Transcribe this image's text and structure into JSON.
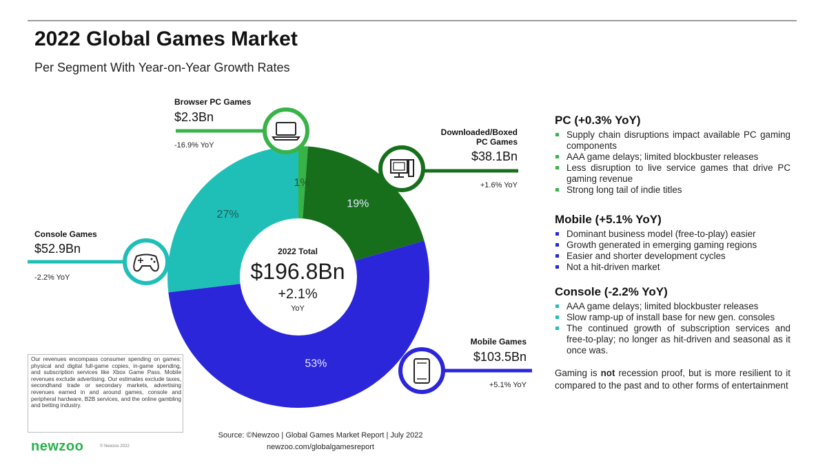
{
  "title": "2022 Global Games Market",
  "subtitle": "Per Segment With Year-on-Year Growth Rates",
  "chart_data": {
    "type": "pie",
    "style": "donut",
    "center": {
      "label": "2022 Total",
      "value": "$196.8Bn",
      "growth": "+2.1%",
      "growth_label": "YoY"
    },
    "slices": [
      {
        "name": "Browser PC Games",
        "value_bn": 2.3,
        "value_label": "$2.3Bn",
        "share_label": "1%",
        "yoy": "-16.9% YoY",
        "color": "#38b348"
      },
      {
        "name": "Downloaded/Boxed PC Games",
        "value_bn": 38.1,
        "value_label": "$38.1Bn",
        "share_label": "19%",
        "yoy": "+1.6% YoY",
        "color": "#176f1c"
      },
      {
        "name": "Mobile Games",
        "value_bn": 103.5,
        "value_label": "$103.5Bn",
        "share_label": "53%",
        "yoy": "+5.1% YoY",
        "color": "#2b26d9"
      },
      {
        "name": "Console Games",
        "value_bn": 52.9,
        "value_label": "$52.9Bn",
        "share_label": "27%",
        "yoy": "-2.2% YoY",
        "color": "#1fbfb8"
      }
    ]
  },
  "segments": {
    "browser": {
      "label": "Browser PC Games",
      "value": "$2.3Bn",
      "yoy": "-16.9% YoY",
      "icon": "laptop-icon"
    },
    "boxed": {
      "label1": "Downloaded/Boxed",
      "label2": "PC Games",
      "value": "$38.1Bn",
      "yoy": "+1.6% YoY",
      "icon": "desktop-pc-icon"
    },
    "mobile": {
      "label": "Mobile Games",
      "value": "$103.5Bn",
      "yoy": "+5.1% YoY",
      "icon": "smartphone-icon"
    },
    "console": {
      "label": "Console Games",
      "value": "$52.9Bn",
      "yoy": "-2.2% YoY",
      "icon": "gamepad-icon"
    }
  },
  "sections": {
    "pc": {
      "heading": "PC (+0.3% YoY)",
      "color": "#38b348",
      "items": [
        "Supply chain disruptions impact available PC gaming components",
        "AAA game delays; limited blockbuster releases",
        "Less disruption to live service games that drive PC gaming revenue",
        "Strong long tail of indie titles"
      ]
    },
    "mobile": {
      "heading": "Mobile (+5.1% YoY)",
      "color": "#2b26d9",
      "items": [
        "Dominant business model (free-to-play) easier",
        "Growth generated in emerging gaming regions",
        "Easier and shorter development cycles",
        "Not a hit-driven market"
      ]
    },
    "console": {
      "heading": "Console (-2.2% YoY)",
      "color": "#1fbfb8",
      "items": [
        "AAA game delays; limited blockbuster releases",
        "Slow ramp-up of install base for new gen. consoles",
        "The continued growth of subscription services and free-to-play; no longer as hit-driven and seasonal as it once was."
      ]
    }
  },
  "closing": {
    "before": "Gaming is ",
    "bold": "not",
    "after": " recession proof, but is more resilient to it compared to the past and to other forms of entertainment"
  },
  "footnote": "Our revenues encompass consumer spending on games: physical and digital full-game copies, in-game spending, and subscription services like Xbox Game Pass. Mobile revenues exclude advertising. Our estimates exclude taxes, secondhand trade or secondary markets, advertising revenues earned in and around games, console and peripheral hardware, B2B services, and the online gambling and betting industry.",
  "source": "Source: ©Newzoo | Global Games Market Report | July 2022",
  "url": "newzoo.com/globalgamesreport",
  "logo": "newzoo",
  "copyright": "© Newzoo 2022"
}
